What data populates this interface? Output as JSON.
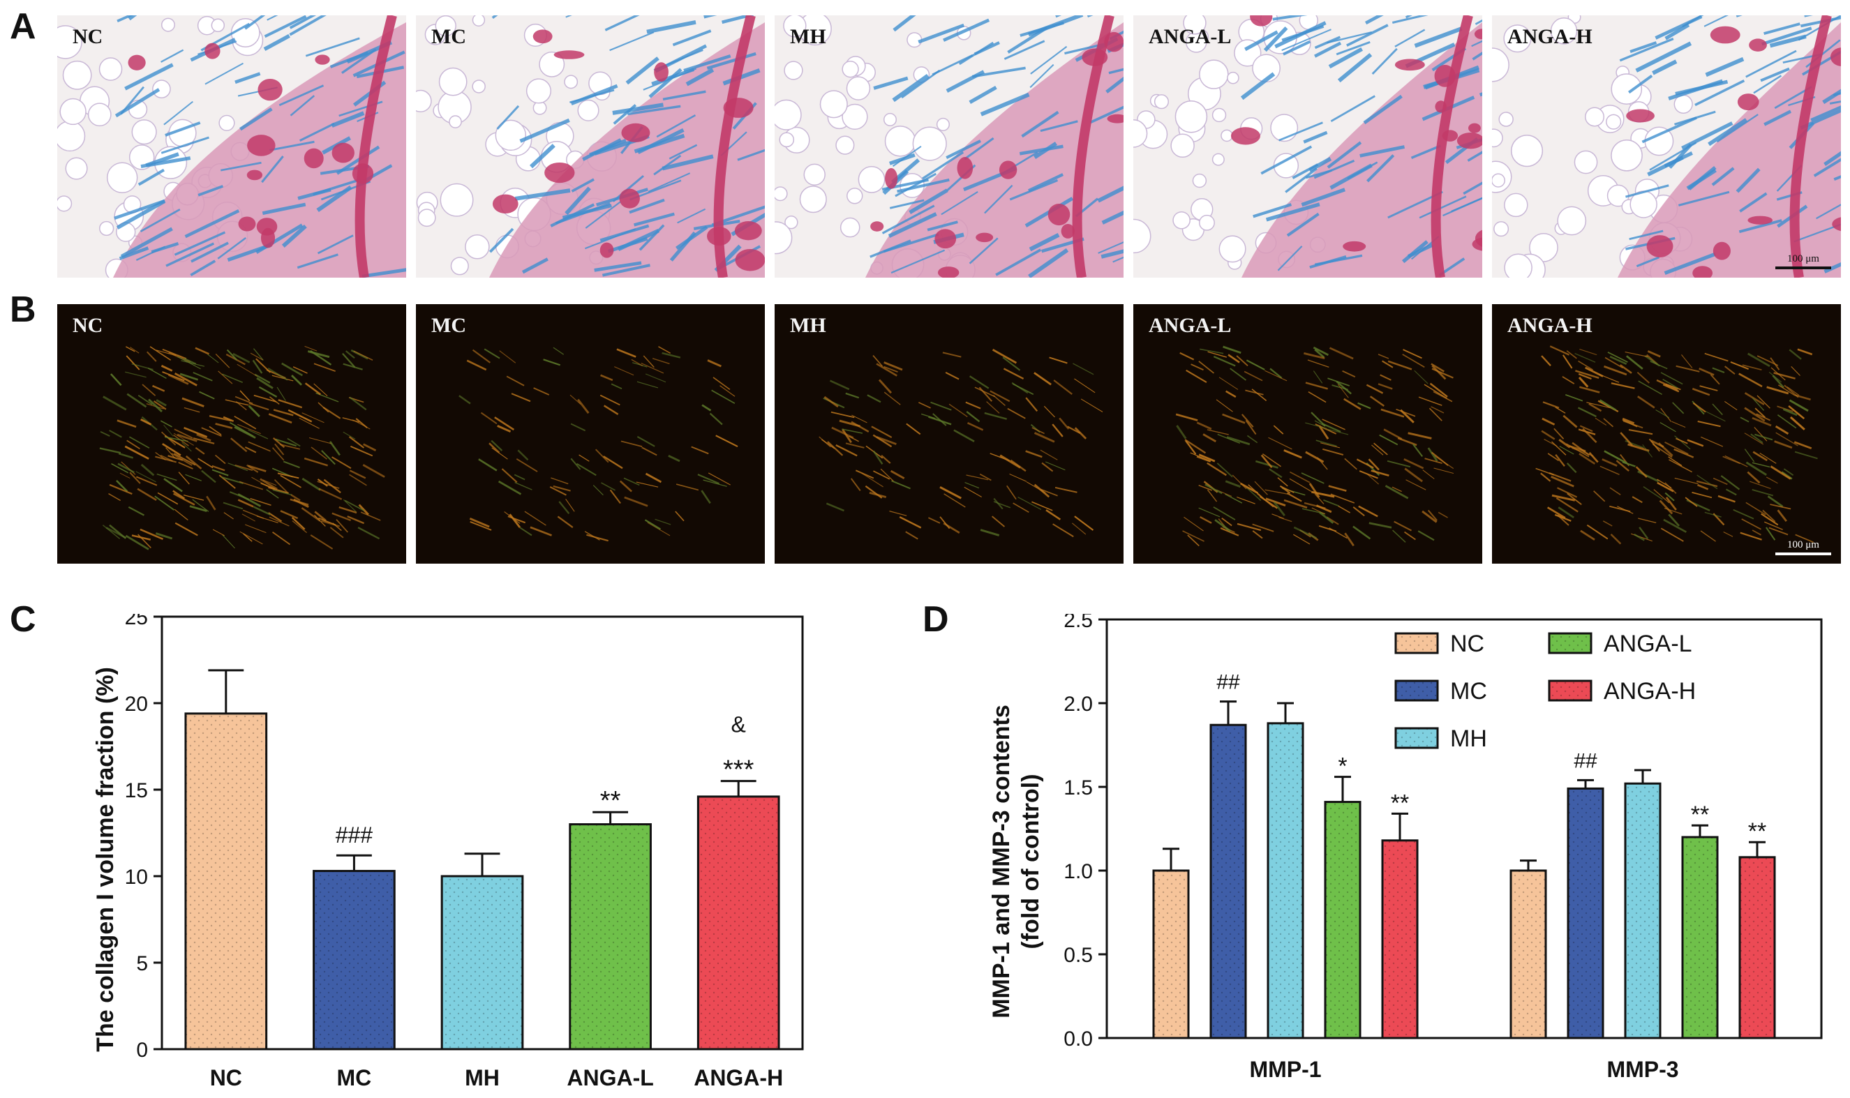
{
  "panel_letters": {
    "a": "A",
    "b": "B",
    "c": "C",
    "d": "D"
  },
  "row_a": {
    "labels": [
      "NC",
      "MC",
      "MH",
      "ANGA-L",
      "ANGA-H"
    ],
    "scale_text": "100 μm",
    "colors": {
      "bg": "#f3efef",
      "collagen": "#3f8fcf",
      "muscle": "#c23a68",
      "tissue": "#d99ab8"
    }
  },
  "row_b": {
    "labels": [
      "NC",
      "MC",
      "MH",
      "ANGA-L",
      "ANGA-H"
    ],
    "scale_text": "100 μm",
    "colors": {
      "bg": "#120903",
      "fiber_orange": "#c27a1e",
      "fiber_green": "#5d7a2a"
    }
  },
  "chart_data": [
    {
      "panel": "C",
      "type": "bar",
      "categories": [
        "NC",
        "MC",
        "MH",
        "ANGA-L",
        "ANGA-H"
      ],
      "values": [
        19.4,
        10.3,
        10.0,
        13.0,
        14.6
      ],
      "errors": [
        2.5,
        0.9,
        1.3,
        0.7,
        0.9
      ],
      "annotations": [
        {
          "category": "MC",
          "text": "###"
        },
        {
          "category": "ANGA-L",
          "text": "**"
        },
        {
          "category": "ANGA-H",
          "text": "***"
        },
        {
          "category": "ANGA-H",
          "text": "&"
        }
      ],
      "colors": [
        "#f6c49a",
        "#3f5ea8",
        "#7fd0e0",
        "#6fc04a",
        "#ec4a55"
      ],
      "ylabel": "The collagen I volume fraction (%)",
      "xlabel": "",
      "ylim": [
        0,
        25
      ],
      "yticks": [
        "0",
        "5",
        "10",
        "15",
        "20",
        "25"
      ],
      "grid": false
    },
    {
      "panel": "D",
      "type": "bar",
      "categories": [
        "MMP-1",
        "MMP-3"
      ],
      "series": [
        {
          "name": "NC",
          "values": [
            1.0,
            1.0
          ],
          "errors": [
            0.13,
            0.06
          ],
          "color": "#f6c49a",
          "annotations": [
            "",
            ""
          ]
        },
        {
          "name": "MC",
          "values": [
            1.87,
            1.49
          ],
          "errors": [
            0.14,
            0.05
          ],
          "color": "#3f5ea8",
          "annotations": [
            "##",
            "##"
          ]
        },
        {
          "name": "MH",
          "values": [
            1.88,
            1.52
          ],
          "errors": [
            0.12,
            0.08
          ],
          "color": "#7fd0e0",
          "annotations": [
            "",
            ""
          ]
        },
        {
          "name": "ANGA-L",
          "values": [
            1.41,
            1.2
          ],
          "errors": [
            0.15,
            0.07
          ],
          "color": "#6fc04a",
          "annotations": [
            "*",
            "**"
          ]
        },
        {
          "name": "ANGA-H",
          "values": [
            1.18,
            1.08
          ],
          "errors": [
            0.16,
            0.09
          ],
          "color": "#ec4a55",
          "annotations": [
            "**",
            "**"
          ]
        }
      ],
      "ylabel_lines": [
        "MMP-1 and MMP-3 contents",
        "(fold of control)"
      ],
      "xlabel": "",
      "ylim": [
        0,
        2.5
      ],
      "yticks": [
        "0.0",
        "0.5",
        "1.0",
        "1.5",
        "2.0",
        "2.5"
      ],
      "legend_position": "top-right",
      "grid": false
    }
  ]
}
